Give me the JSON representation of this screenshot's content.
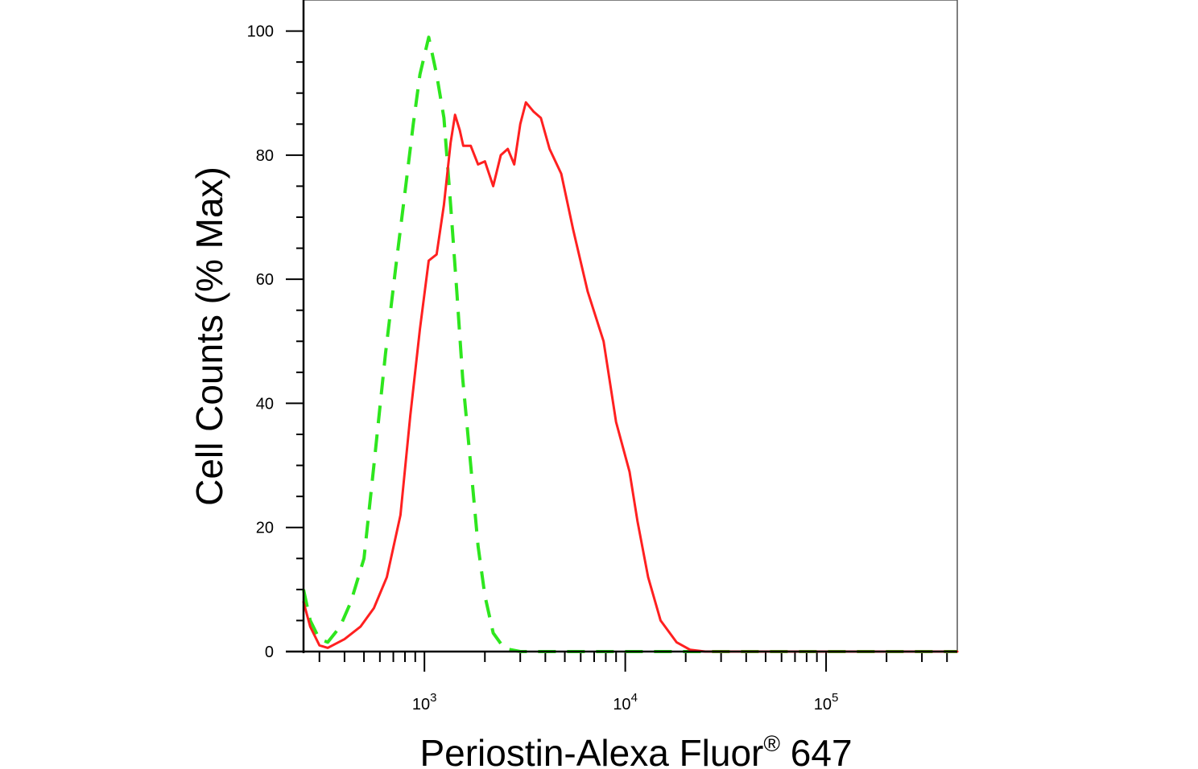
{
  "chart_data": {
    "type": "line",
    "title": "",
    "xlabel_main": "Periostin-Alexa Fluor",
    "xlabel_sup": "®",
    "xlabel_tail": " 647",
    "ylabel": "Cell Counts (% Max)",
    "x_scale": "log",
    "xlim": [
      250,
      450000
    ],
    "ylim": [
      0,
      105
    ],
    "y_ticks": [
      0,
      20,
      40,
      60,
      80,
      100
    ],
    "x_major_ticks": [
      {
        "value": 1000,
        "base": "10",
        "exp": "3"
      },
      {
        "value": 10000,
        "base": "10",
        "exp": "4"
      },
      {
        "value": 100000,
        "base": "10",
        "exp": "5"
      }
    ],
    "grid": false,
    "legend": "none",
    "series": [
      {
        "color": "#2ee61e",
        "style": "dashed",
        "points": [
          [
            250,
            10
          ],
          [
            270,
            5
          ],
          [
            300,
            2
          ],
          [
            330,
            1.5
          ],
          [
            380,
            4
          ],
          [
            430,
            8
          ],
          [
            500,
            15
          ],
          [
            560,
            30
          ],
          [
            640,
            48
          ],
          [
            720,
            62
          ],
          [
            800,
            74
          ],
          [
            880,
            85
          ],
          [
            950,
            93
          ],
          [
            1050,
            99
          ],
          [
            1150,
            93
          ],
          [
            1250,
            86
          ],
          [
            1350,
            72
          ],
          [
            1450,
            58
          ],
          [
            1550,
            44
          ],
          [
            1700,
            30
          ],
          [
            1850,
            17
          ],
          [
            2000,
            9
          ],
          [
            2200,
            3
          ],
          [
            2500,
            0.5
          ],
          [
            3000,
            0
          ],
          [
            20000,
            0
          ],
          [
            450000,
            0
          ]
        ]
      },
      {
        "color": "#ff2020",
        "style": "solid",
        "points": [
          [
            250,
            8
          ],
          [
            270,
            4
          ],
          [
            300,
            1
          ],
          [
            330,
            0.6
          ],
          [
            400,
            2
          ],
          [
            480,
            4
          ],
          [
            560,
            7
          ],
          [
            650,
            12
          ],
          [
            760,
            22
          ],
          [
            850,
            38
          ],
          [
            950,
            52
          ],
          [
            1050,
            63
          ],
          [
            1150,
            64
          ],
          [
            1250,
            72
          ],
          [
            1350,
            82
          ],
          [
            1420,
            86.5
          ],
          [
            1500,
            84
          ],
          [
            1560,
            81.5
          ],
          [
            1700,
            81.5
          ],
          [
            1850,
            78.5
          ],
          [
            2000,
            79
          ],
          [
            2200,
            75
          ],
          [
            2400,
            80
          ],
          [
            2600,
            81
          ],
          [
            2800,
            78.5
          ],
          [
            3000,
            85
          ],
          [
            3200,
            88.5
          ],
          [
            3500,
            87
          ],
          [
            3800,
            86
          ],
          [
            4200,
            81
          ],
          [
            4800,
            77
          ],
          [
            5500,
            68
          ],
          [
            6500,
            58
          ],
          [
            7800,
            50
          ],
          [
            9000,
            37
          ],
          [
            10500,
            29
          ],
          [
            11500,
            21
          ],
          [
            13000,
            12
          ],
          [
            15000,
            5
          ],
          [
            18000,
            1.5
          ],
          [
            21000,
            0.3
          ],
          [
            25000,
            0
          ],
          [
            450000,
            0
          ]
        ]
      }
    ]
  }
}
